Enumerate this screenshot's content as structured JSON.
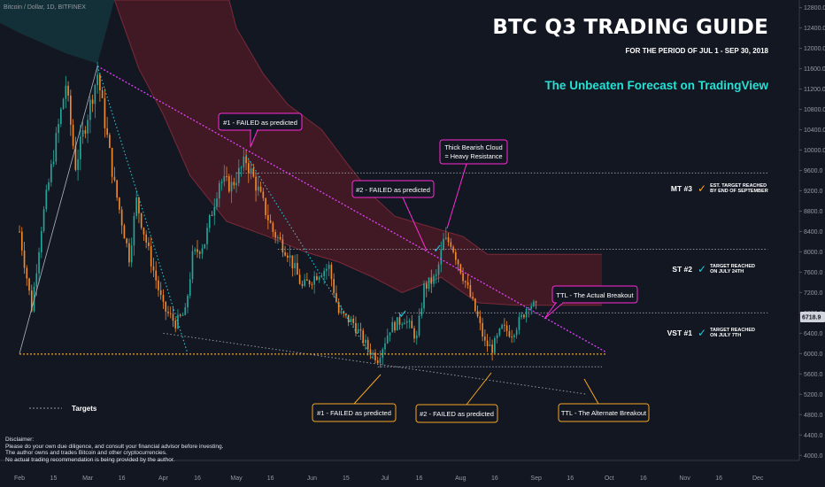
{
  "symbol": "Bitcoin / Dollar, 1D, BITFINEX",
  "header": {
    "title": "BTC Q3 TRADING GUIDE",
    "subtitle": "FOR THE PERIOD OF JUL 1 - SEP 30, 2018",
    "tagline": "The Unbeaten Forecast on TradingView"
  },
  "targets": [
    {
      "name": "MT #3",
      "check_color": "#f5a623",
      "note_line1": "EST. TARGET REACHED",
      "note_line2": "BY END OF SEPTEMBER",
      "price": 9550
    },
    {
      "name": "ST #2",
      "check_color": "#26c6da",
      "note_line1": "TARGET REACHED",
      "note_line2": "ON JULY 24TH",
      "price": 8050
    },
    {
      "name": "VST #1",
      "check_color": "#26c6da",
      "note_line1": "TARGET REACHED",
      "note_line2": "ON JULY 7TH",
      "price": 6800
    }
  ],
  "legend": {
    "label": "Targets"
  },
  "annotations": {
    "top1": "#1 - FAILED as predicted",
    "top2": "#2 - FAILED as predicted",
    "cloud_line1": "Thick Bearish Cloud",
    "cloud_line2": "= Heavy Resistance",
    "ttl_actual": "TTL - The Actual Breakout",
    "bottom1": "#1 - FAILED as predicted",
    "bottom2": "#2 - FAILED as predicted",
    "ttl_alt": "TTL - The Alternate Breakout"
  },
  "disclaimer": [
    "Disclaimer:",
    "Please do your own due diligence, and consult your financial advisor before investing.",
    "The author owns and trades Bitcoin and other cryptocurrencies.",
    "No actual trading recommendation is being provided by the author."
  ],
  "colors": {
    "background": "#131722",
    "candle_up": "#26a69a",
    "candle_down": "#ef8a2e",
    "cloud_bearish": "#4a1a24",
    "cloud_bullish": "#14323a",
    "magenta": "#e040fb",
    "orange": "#f5a623",
    "teal": "#26c6da",
    "pink_box": "#ff2bd6"
  },
  "chart_data": {
    "type": "candlestick",
    "y_axis": {
      "ticks": [
        4000,
        4400,
        4800,
        5200,
        5600,
        6000,
        6400,
        6800,
        7200,
        7600,
        8000,
        8400,
        8800,
        9200,
        9600,
        10000,
        10400,
        10800,
        11200,
        11600,
        12000,
        12400,
        12800
      ],
      "tick_labels": [
        "4000.0",
        "4400.0",
        "4800.0",
        "5200.0",
        "5600.0",
        "6000.0",
        "6400.0",
        "6800.0",
        "7200.0",
        "7600.0",
        "8000.0",
        "8400.0",
        "8800.0",
        "9200.0",
        "9600.0",
        "10000.0",
        "10400.0",
        "10800.0",
        "11200.0",
        "11600.0",
        "12000.0",
        "12400.0",
        "12800.0"
      ],
      "range": [
        3900,
        12950
      ],
      "last_price": 6718.9,
      "last_price_label": "6718.9"
    },
    "x_axis": {
      "range": [
        "2018-01-24",
        "2018-12-18"
      ],
      "ticks": [
        {
          "date": "2018-02-01",
          "label": "Feb"
        },
        {
          "date": "2018-02-15",
          "label": "15"
        },
        {
          "date": "2018-03-01",
          "label": "Mar"
        },
        {
          "date": "2018-03-15",
          "label": "16"
        },
        {
          "date": "2018-04-01",
          "label": "Apr"
        },
        {
          "date": "2018-04-15",
          "label": "16"
        },
        {
          "date": "2018-05-01",
          "label": "May"
        },
        {
          "date": "2018-05-15",
          "label": "16"
        },
        {
          "date": "2018-06-01",
          "label": "Jun"
        },
        {
          "date": "2018-06-15",
          "label": "15"
        },
        {
          "date": "2018-07-01",
          "label": "Jul"
        },
        {
          "date": "2018-07-15",
          "label": "16"
        },
        {
          "date": "2018-08-01",
          "label": "Aug"
        },
        {
          "date": "2018-08-15",
          "label": "16"
        },
        {
          "date": "2018-09-01",
          "label": "Sep"
        },
        {
          "date": "2018-09-15",
          "label": "16"
        },
        {
          "date": "2018-10-01",
          "label": "Oct"
        },
        {
          "date": "2018-10-15",
          "label": "16"
        },
        {
          "date": "2018-11-01",
          "label": "Nov"
        },
        {
          "date": "2018-11-15",
          "label": "16"
        },
        {
          "date": "2018-12-01",
          "label": "Dec"
        }
      ]
    },
    "price_path": [
      [
        "2018-02-01",
        8400
      ],
      [
        "2018-02-06",
        6900
      ],
      [
        "2018-02-10",
        8500
      ],
      [
        "2018-02-16",
        10200
      ],
      [
        "2018-02-20",
        11300
      ],
      [
        "2018-02-24",
        9700
      ],
      [
        "2018-03-05",
        11500
      ],
      [
        "2018-03-12",
        9300
      ],
      [
        "2018-03-18",
        7900
      ],
      [
        "2018-03-21",
        9000
      ],
      [
        "2018-03-26",
        8000
      ],
      [
        "2018-04-01",
        6900
      ],
      [
        "2018-04-06",
        6600
      ],
      [
        "2018-04-10",
        6800
      ],
      [
        "2018-04-13",
        7900
      ],
      [
        "2018-04-18",
        8200
      ],
      [
        "2018-04-24",
        9400
      ],
      [
        "2018-04-29",
        9300
      ],
      [
        "2018-05-05",
        9800
      ],
      [
        "2018-05-10",
        9200
      ],
      [
        "2018-05-16",
        8400
      ],
      [
        "2018-05-22",
        8000
      ],
      [
        "2018-05-28",
        7300
      ],
      [
        "2018-06-04",
        7600
      ],
      [
        "2018-06-08",
        7700
      ],
      [
        "2018-06-12",
        6800
      ],
      [
        "2018-06-18",
        6600
      ],
      [
        "2018-06-24",
        6100
      ],
      [
        "2018-06-28",
        5900
      ],
      [
        "2018-07-03",
        6500
      ],
      [
        "2018-07-09",
        6700
      ],
      [
        "2018-07-14",
        6300
      ],
      [
        "2018-07-17",
        7300
      ],
      [
        "2018-07-22",
        7500
      ],
      [
        "2018-07-25",
        8200
      ],
      [
        "2018-07-28",
        8200
      ],
      [
        "2018-08-03",
        7400
      ],
      [
        "2018-08-08",
        6700
      ],
      [
        "2018-08-11",
        6200
      ],
      [
        "2018-08-14",
        6100
      ],
      [
        "2018-08-18",
        6500
      ],
      [
        "2018-08-22",
        6400
      ],
      [
        "2018-08-26",
        6700
      ],
      [
        "2018-08-29",
        7000
      ],
      [
        "2018-09-01",
        6900
      ]
    ],
    "ichimoku_cloud": {
      "upper": [
        [
          "2018-03-12",
          12950
        ],
        [
          "2018-04-28",
          12950
        ],
        [
          "2018-05-01",
          12400
        ],
        [
          "2018-05-12",
          11500
        ],
        [
          "2018-05-22",
          10900
        ],
        [
          "2018-06-05",
          10400
        ],
        [
          "2018-06-16",
          9700
        ],
        [
          "2018-06-26",
          9100
        ],
        [
          "2018-07-05",
          8700
        ],
        [
          "2018-07-19",
          8500
        ],
        [
          "2018-08-02",
          8300
        ],
        [
          "2018-08-12",
          7950
        ],
        [
          "2018-09-28",
          7950
        ]
      ],
      "lower": [
        [
          "2018-03-12",
          12950
        ],
        [
          "2018-03-22",
          11600
        ],
        [
          "2018-04-01",
          10700
        ],
        [
          "2018-04-12",
          9500
        ],
        [
          "2018-04-27",
          8600
        ],
        [
          "2018-05-14",
          8300
        ],
        [
          "2018-05-29",
          8000
        ],
        [
          "2018-06-12",
          7800
        ],
        [
          "2018-06-26",
          7500
        ],
        [
          "2018-07-08",
          7200
        ],
        [
          "2018-07-24",
          7500
        ],
        [
          "2018-08-08",
          7000
        ],
        [
          "2018-08-24",
          6950
        ],
        [
          "2018-09-28",
          6950
        ]
      ]
    },
    "levels": [
      {
        "name": "MT #3",
        "price": 9550,
        "from": "2018-05-01",
        "to": "2018-12-05"
      },
      {
        "name": "ST #2",
        "price": 8050,
        "from": "2018-05-18",
        "to": "2018-12-05"
      },
      {
        "name": "VST #1",
        "price": 6800,
        "from": "2018-07-05",
        "to": "2018-12-05"
      },
      {
        "name": "support",
        "price": 5990,
        "from": "2018-02-01",
        "to": "2018-09-30"
      },
      {
        "name": "alternate",
        "price": 5740,
        "from": "2018-06-28",
        "to": "2018-09-28"
      }
    ],
    "trend_lines": [
      {
        "style": "magenta-dotted",
        "from": [
          "2018-03-05",
          11650
        ],
        "to": [
          "2018-09-30",
          6020
        ]
      },
      {
        "style": "teal-dotted",
        "from": [
          "2018-03-05",
          11650
        ],
        "to": [
          "2018-04-11",
          6000
        ]
      },
      {
        "style": "teal-dotted",
        "from": [
          "2018-05-05",
          9900
        ],
        "to": [
          "2018-06-26",
          5900
        ]
      },
      {
        "style": "gray-dotted",
        "from": [
          "2018-04-01",
          6400
        ],
        "to": [
          "2018-09-22",
          5200
        ]
      },
      {
        "style": "gray-solid",
        "from": [
          "2018-02-01",
          6000
        ],
        "to": [
          "2018-03-05",
          11650
        ]
      }
    ]
  }
}
